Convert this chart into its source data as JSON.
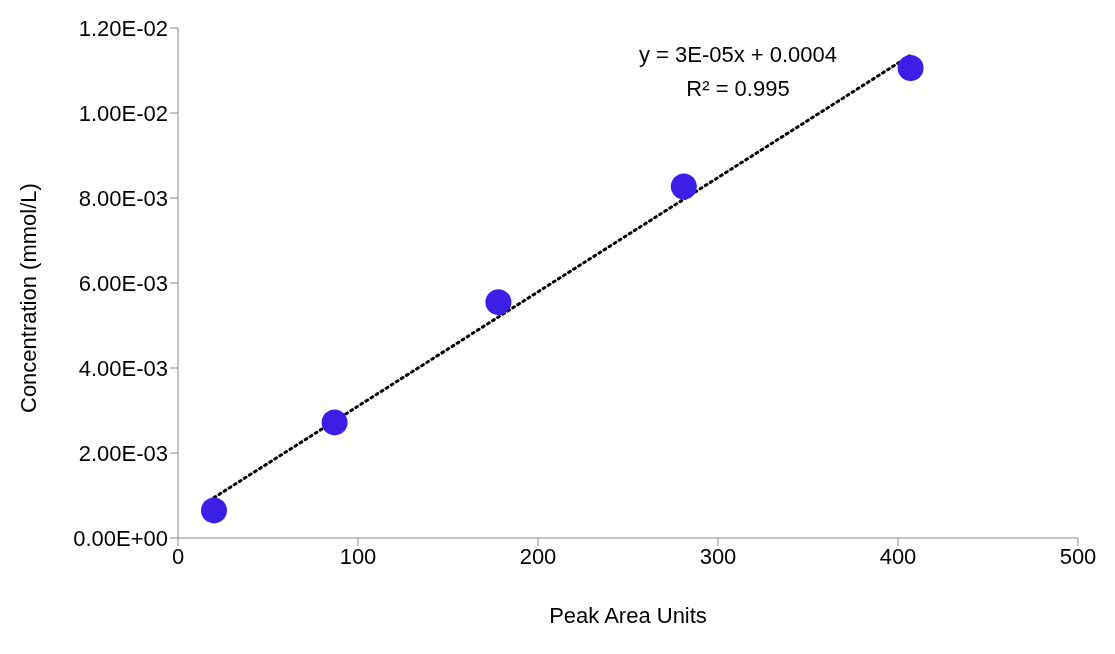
{
  "chart_data": {
    "type": "scatter",
    "xlabel": "Peak Area Units",
    "ylabel": "Concentration (mmol/L)",
    "xlim": [
      0,
      500
    ],
    "xticks": [
      0,
      100,
      200,
      300,
      400,
      500
    ],
    "ylim": [
      0,
      0.012
    ],
    "yticks": [
      {
        "value": 0,
        "label": "0.00E+00"
      },
      {
        "value": 0.002,
        "label": "2.00E-03"
      },
      {
        "value": 0.004,
        "label": "4.00E-03"
      },
      {
        "value": 0.006,
        "label": "6.00E-03"
      },
      {
        "value": 0.008,
        "label": "8.00E-03"
      },
      {
        "value": 0.01,
        "label": "1.00E-02"
      },
      {
        "value": 0.012,
        "label": "1.20E-02"
      }
    ],
    "grid": false,
    "legend": false,
    "marker": "circle",
    "series": [
      {
        "color": "#3c1ee6",
        "x": [
          20,
          87,
          178,
          281,
          407
        ],
        "values": [
          0.00065,
          0.00272,
          0.00555,
          0.00827,
          0.01106
        ]
      },
      {
        "type": "line",
        "color": "#000000",
        "line_style": "dotted",
        "marker": "none",
        "x": [
          20,
          407
        ],
        "values": [
          0.00095,
          0.01136
        ]
      }
    ],
    "annotations": [
      "y = 3E-05x + 0.0004",
      "R² = 0.995"
    ]
  }
}
